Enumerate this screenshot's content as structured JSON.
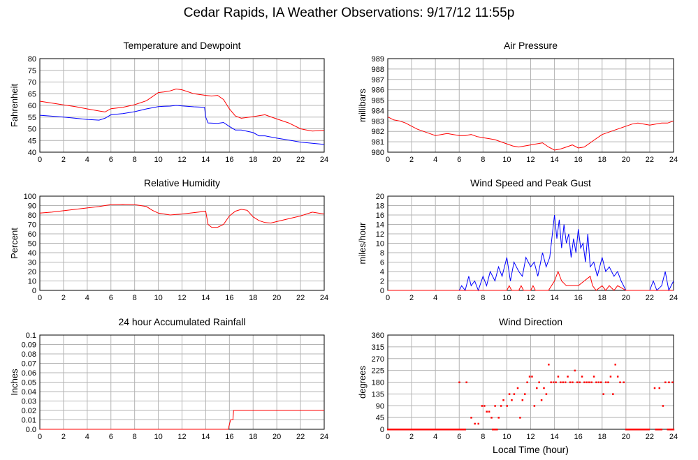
{
  "page": {
    "title": "Cedar Rapids, IA Weather Observations: 9/17/12 11:55p"
  },
  "colors": {
    "red": "#ff0000",
    "blue": "#0000ff",
    "grid": "#b4b4b4"
  },
  "chart_data": [
    {
      "type": "line",
      "title": "Temperature and Dewpoint",
      "ylabel": "Fahrenheit",
      "xlabel": "",
      "xlim": [
        0,
        24
      ],
      "ylim": [
        40,
        80
      ],
      "x_ticks": [
        0,
        2,
        4,
        6,
        8,
        10,
        12,
        14,
        16,
        18,
        20,
        22,
        24
      ],
      "y_ticks": [
        40,
        45,
        50,
        55,
        60,
        65,
        70,
        75,
        80
      ],
      "series": [
        {
          "color": "red",
          "x": [
            0,
            1,
            2,
            3,
            4,
            5,
            5.5,
            6,
            7,
            8,
            9,
            10,
            10.5,
            11,
            11.5,
            12,
            13,
            14,
            14.5,
            15,
            15.5,
            16,
            16.5,
            17,
            18,
            19,
            20,
            21,
            22,
            22.5,
            23,
            24
          ],
          "values": [
            61.8,
            61,
            60.2,
            59.5,
            58.5,
            57.6,
            57.2,
            58.6,
            59.2,
            60.3,
            62,
            65.5,
            65.8,
            66.2,
            67,
            66.7,
            65,
            64.3,
            64,
            64.3,
            62.5,
            58.5,
            55.5,
            54.5,
            55.2,
            56,
            54.2,
            52.5,
            50,
            49.5,
            49,
            49.3
          ]
        },
        {
          "color": "blue",
          "x": [
            0,
            1,
            2,
            3,
            4,
            5,
            5.5,
            6,
            7,
            8,
            9,
            10,
            10.5,
            11,
            11.5,
            12,
            13,
            13.9,
            14,
            14.2,
            15,
            15.5,
            16,
            16.5,
            17,
            18,
            18.5,
            19,
            20,
            21,
            22,
            23,
            24
          ],
          "values": [
            55.8,
            55.4,
            55,
            54.5,
            54,
            53.7,
            54.5,
            56,
            56.5,
            57.3,
            58.5,
            59.5,
            59.6,
            59.7,
            60,
            59.8,
            59.4,
            59.2,
            55,
            52.5,
            52.3,
            52.7,
            51,
            49.5,
            49.5,
            48.4,
            47,
            47,
            46,
            45.2,
            44.3,
            43.8,
            43.3
          ]
        }
      ]
    },
    {
      "type": "line",
      "title": "Air Pressure",
      "ylabel": "millibars",
      "xlabel": "",
      "xlim": [
        0,
        24
      ],
      "ylim": [
        980,
        989
      ],
      "x_ticks": [
        0,
        2,
        4,
        6,
        8,
        10,
        12,
        14,
        16,
        18,
        20,
        22,
        24
      ],
      "y_ticks": [
        980,
        981,
        982,
        983,
        984,
        985,
        986,
        987,
        988,
        989
      ],
      "series": [
        {
          "color": "red",
          "x": [
            0,
            0.5,
            1,
            1.5,
            2,
            2.5,
            3,
            3.5,
            4,
            4.5,
            5,
            5.5,
            6,
            6.5,
            7,
            7.5,
            8,
            8.5,
            9,
            9.5,
            10,
            10.5,
            11,
            11.5,
            12,
            12.5,
            13,
            13.5,
            14,
            14.5,
            15,
            15.5,
            16,
            16.5,
            17,
            17.5,
            18,
            18.5,
            19,
            19.5,
            20,
            20.5,
            21,
            21.5,
            22,
            22.5,
            23,
            23.5,
            24
          ],
          "values": [
            983.4,
            983.1,
            983,
            982.8,
            982.5,
            982.2,
            982,
            981.8,
            981.6,
            981.7,
            981.8,
            981.7,
            981.6,
            981.6,
            981.7,
            981.5,
            981.4,
            981.3,
            981.2,
            981,
            980.8,
            980.6,
            980.5,
            980.6,
            980.7,
            980.8,
            980.9,
            980.5,
            980.2,
            980.3,
            980.5,
            980.7,
            980.4,
            980.5,
            980.9,
            981.3,
            981.7,
            981.9,
            982.1,
            982.3,
            982.5,
            982.7,
            982.8,
            982.7,
            982.6,
            982.7,
            982.8,
            982.8,
            983
          ]
        }
      ]
    },
    {
      "type": "line",
      "title": "Relative Humidity",
      "ylabel": "Percent",
      "xlabel": "",
      "xlim": [
        0,
        24
      ],
      "ylim": [
        0,
        100
      ],
      "x_ticks": [
        0,
        2,
        4,
        6,
        8,
        10,
        12,
        14,
        16,
        18,
        20,
        22,
        24
      ],
      "y_ticks": [
        0,
        10,
        20,
        30,
        40,
        50,
        60,
        70,
        80,
        90,
        100
      ],
      "series": [
        {
          "color": "red",
          "x": [
            0,
            1,
            2,
            3,
            4,
            5,
            6,
            7,
            8,
            9,
            9.5,
            10,
            11,
            12,
            13,
            14,
            14.2,
            14.5,
            15,
            15.5,
            16,
            16.5,
            17,
            17.5,
            18,
            18.5,
            19,
            19.5,
            20,
            21,
            22,
            23,
            24
          ],
          "values": [
            82,
            83,
            84.5,
            86,
            87.5,
            89,
            91,
            91.5,
            91,
            89,
            85,
            82,
            80,
            81,
            82.5,
            84,
            70,
            67,
            67,
            70,
            79,
            84,
            86,
            85,
            78,
            74,
            72,
            71.5,
            73,
            76,
            79,
            83,
            81
          ]
        }
      ]
    },
    {
      "type": "line",
      "title": "Wind Speed and Peak Gust",
      "ylabel": "miles/hour",
      "xlabel": "",
      "xlim": [
        0,
        24
      ],
      "ylim": [
        0,
        20
      ],
      "x_ticks": [
        0,
        2,
        4,
        6,
        8,
        10,
        12,
        14,
        16,
        18,
        20,
        22,
        24
      ],
      "y_ticks": [
        0,
        2,
        4,
        6,
        8,
        10,
        12,
        14,
        16,
        18,
        20
      ],
      "series": [
        {
          "color": "blue",
          "x": [
            0,
            6,
            6.2,
            6.5,
            6.8,
            7,
            7.3,
            7.6,
            8,
            8.3,
            8.6,
            9,
            9.3,
            9.6,
            10,
            10.3,
            10.6,
            11,
            11.3,
            11.6,
            12,
            12.3,
            12.6,
            13,
            13.3,
            13.6,
            14,
            14.2,
            14.4,
            14.6,
            14.8,
            15,
            15.2,
            15.4,
            15.6,
            15.8,
            16,
            16.2,
            16.4,
            16.6,
            16.8,
            17,
            17.3,
            17.6,
            18,
            18.3,
            18.6,
            19,
            19.3,
            19.6,
            20,
            20.3,
            22,
            22.3,
            22.6,
            23,
            23.3,
            23.6,
            24
          ],
          "values": [
            0,
            0,
            1,
            0,
            3,
            1,
            2,
            0,
            3,
            1,
            4,
            2,
            5,
            3,
            7,
            2,
            6,
            4,
            3,
            7,
            5,
            6,
            3,
            8,
            5,
            7,
            16,
            11,
            15,
            9,
            14,
            10,
            12,
            7,
            11,
            8,
            13,
            9,
            10,
            6,
            12,
            5,
            6,
            3,
            7,
            4,
            5,
            3,
            4,
            2,
            0,
            0,
            0,
            2,
            0,
            1,
            4,
            0,
            2
          ]
        },
        {
          "color": "red",
          "x": [
            0,
            10,
            10.2,
            10.4,
            11,
            11.2,
            11.4,
            12,
            12.2,
            12.4,
            13,
            13.5,
            14,
            14.3,
            14.6,
            15,
            15.5,
            16,
            16.5,
            17,
            17.2,
            17.5,
            18,
            18.3,
            18.6,
            19,
            19.3,
            20,
            24
          ],
          "values": [
            0,
            0,
            1,
            0,
            0,
            1,
            0,
            0,
            1,
            0,
            0,
            0,
            2,
            4,
            2,
            1,
            1,
            1,
            2,
            3,
            1,
            0,
            1,
            0,
            1,
            0,
            1,
            0,
            0
          ]
        }
      ]
    },
    {
      "type": "line",
      "title": "24 hour Accumulated Rainfall",
      "ylabel": "Inches",
      "xlabel": "",
      "xlim": [
        0,
        24
      ],
      "ylim": [
        0,
        0.1
      ],
      "x_ticks": [
        0,
        2,
        4,
        6,
        8,
        10,
        12,
        14,
        16,
        18,
        20,
        22,
        24
      ],
      "y_ticks": [
        "0.0",
        "0.01",
        "0.02",
        "0.03",
        "0.04",
        "0.05",
        "0.06",
        "0.07",
        "0.08",
        "0.09",
        "0.1"
      ],
      "series": [
        {
          "color": "red",
          "x": [
            0,
            15.9,
            16.1,
            16.3,
            16.35,
            16.4,
            24
          ],
          "values": [
            0,
            0,
            0.01,
            0.01,
            0.02,
            0.02,
            0.02
          ]
        }
      ]
    },
    {
      "type": "scatter",
      "title": "Wind Direction",
      "ylabel": "degrees",
      "xlabel": "Local Time (hour)",
      "xlim": [
        0,
        24
      ],
      "ylim": [
        0,
        360
      ],
      "x_ticks": [
        0,
        2,
        4,
        6,
        8,
        10,
        12,
        14,
        16,
        18,
        20,
        22,
        24
      ],
      "y_ticks": [
        0,
        45,
        90,
        135,
        180,
        225,
        270,
        315,
        360
      ],
      "calm_ranges": [
        [
          0,
          6.5
        ],
        [
          8.8,
          9.2
        ],
        [
          20,
          22
        ],
        [
          22.5,
          23
        ],
        [
          23.5,
          24
        ]
      ],
      "points": {
        "x": [
          6,
          6.6,
          7,
          7.3,
          7.6,
          7.9,
          8.1,
          8.3,
          8.5,
          8.7,
          9,
          9.3,
          9.5,
          9.7,
          10,
          10.2,
          10.4,
          10.6,
          10.9,
          11.1,
          11.3,
          11.5,
          11.7,
          11.9,
          12.1,
          12.3,
          12.5,
          12.7,
          12.9,
          13.1,
          13.3,
          13.5,
          13.7,
          13.9,
          14.1,
          14.3,
          14.5,
          14.7,
          14.9,
          15.1,
          15.3,
          15.5,
          15.7,
          15.9,
          16.1,
          16.3,
          16.5,
          16.7,
          16.9,
          17.1,
          17.3,
          17.5,
          17.7,
          17.9,
          18.1,
          18.3,
          18.5,
          18.7,
          18.9,
          19.1,
          19.3,
          19.5,
          19.8,
          22.4,
          22.8,
          23.1,
          23.3,
          23.6,
          23.9
        ],
        "values": [
          180,
          180,
          45,
          22,
          22,
          90,
          90,
          68,
          68,
          45,
          90,
          45,
          90,
          112,
          90,
          135,
          112,
          135,
          158,
          45,
          112,
          135,
          180,
          202,
          202,
          90,
          158,
          180,
          112,
          158,
          135,
          248,
          180,
          180,
          180,
          202,
          180,
          180,
          180,
          202,
          180,
          180,
          225,
          180,
          180,
          202,
          180,
          180,
          180,
          180,
          202,
          180,
          180,
          180,
          135,
          180,
          180,
          202,
          135,
          248,
          202,
          180,
          180,
          158,
          158,
          90,
          180,
          180,
          180
        ]
      }
    }
  ]
}
